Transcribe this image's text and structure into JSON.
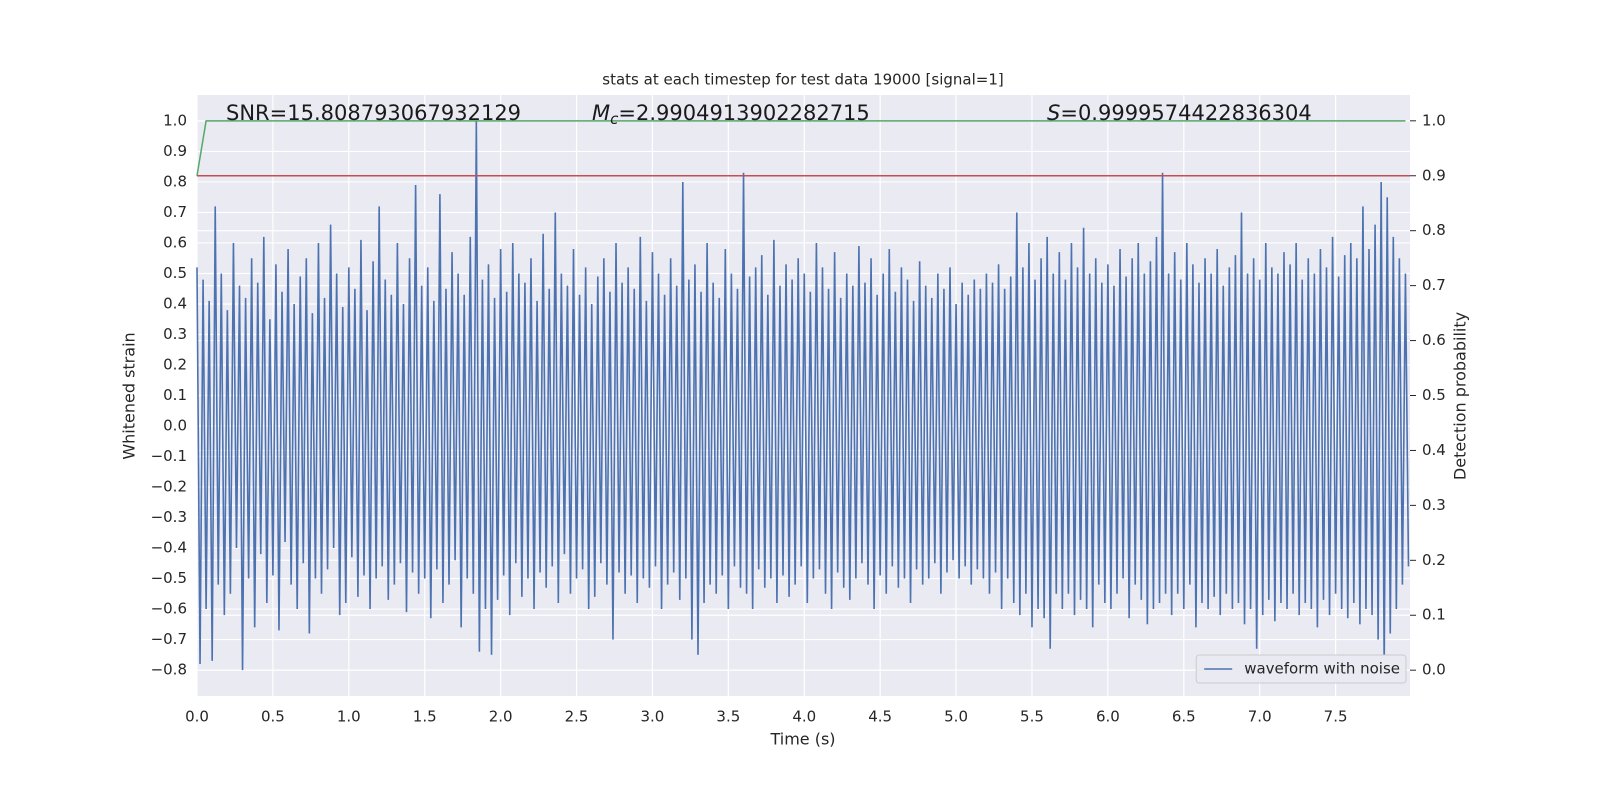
{
  "chart_data": {
    "type": "line",
    "title": "stats at each timestep for test data 19000 [signal=1]",
    "xlabel": "Time (s)",
    "ylabel": "Whitened strain",
    "y2label": "Detection probability",
    "annotations": [
      {
        "text": "SNR=15.808793067932129"
      },
      {
        "symbol": "M",
        "subscript": "c",
        "text": "=2.9904913902282715"
      },
      {
        "symbol": "S",
        "text": "=0.9999574422836304"
      }
    ],
    "xlim": [
      0,
      7.99
    ],
    "ylim": [
      -0.885,
      1.085
    ],
    "y2lim": [
      -0.047,
      1.047
    ],
    "xticks": [
      {
        "value": 0,
        "label": "0.0"
      },
      0.5,
      {
        "value": 1,
        "label": "1.0"
      },
      1.5,
      {
        "value": 2,
        "label": "2.0"
      },
      2.5,
      {
        "value": 3,
        "label": "3.0"
      },
      3.5,
      {
        "value": 4,
        "label": "4.0"
      },
      4.5,
      {
        "value": 5,
        "label": "5.0"
      },
      5.5,
      {
        "value": 6,
        "label": "6.0"
      },
      6.5,
      {
        "value": 7,
        "label": "7.0"
      },
      7.5
    ],
    "yticks": [
      {
        "value": -0.8,
        "label": "−0.8"
      },
      {
        "value": -0.7,
        "label": "−0.7"
      },
      {
        "value": -0.6,
        "label": "−0.6"
      },
      {
        "value": -0.5,
        "label": "−0.5"
      },
      {
        "value": -0.4,
        "label": "−0.4"
      },
      {
        "value": -0.3,
        "label": "−0.3"
      },
      {
        "value": -0.2,
        "label": "−0.2"
      },
      {
        "value": -0.1,
        "label": "−0.1"
      },
      {
        "value": 0,
        "label": "0.0"
      },
      0.1,
      0.2,
      0.3,
      0.4,
      0.5,
      0.6,
      0.7,
      0.8,
      0.9,
      {
        "value": 1,
        "label": "1.0"
      }
    ],
    "y2ticks": [
      {
        "value": 0,
        "label": "0.0"
      },
      0.1,
      0.2,
      0.3,
      0.4,
      0.5,
      0.6,
      0.7,
      0.8,
      0.9,
      {
        "value": 1,
        "label": "1.0"
      }
    ],
    "grid": true,
    "legend": "lower right",
    "series": [
      {
        "name": "waveform with noise",
        "color": "#4c72b0",
        "x": [
          0,
          0.02,
          0.04,
          0.06,
          0.08,
          0.1,
          0.12,
          0.14,
          0.16,
          0.18,
          0.2,
          0.22,
          0.24,
          0.26,
          0.28,
          0.3,
          0.32,
          0.34,
          0.36,
          0.38,
          0.4,
          0.42,
          0.44,
          0.46,
          0.48,
          0.5,
          0.52,
          0.54,
          0.56,
          0.58,
          0.6,
          0.62,
          0.64,
          0.66,
          0.68,
          0.7,
          0.72,
          0.74,
          0.76,
          0.78,
          0.8,
          0.82,
          0.84,
          0.86,
          0.88,
          0.9,
          0.92,
          0.94,
          0.96,
          0.98,
          1,
          1.02,
          1.04,
          1.06,
          1.08,
          1.1,
          1.12,
          1.14,
          1.16,
          1.18,
          1.2,
          1.22,
          1.24,
          1.26,
          1.28,
          1.3,
          1.32,
          1.34,
          1.36,
          1.38,
          1.4,
          1.42,
          1.44,
          1.46,
          1.48,
          1.5,
          1.52,
          1.54,
          1.56,
          1.58,
          1.6,
          1.62,
          1.64,
          1.66,
          1.68,
          1.7,
          1.72,
          1.74,
          1.76,
          1.78,
          1.8,
          1.82,
          1.84,
          1.86,
          1.88,
          1.9,
          1.92,
          1.94,
          1.96,
          1.98,
          2,
          2.02,
          2.04,
          2.06,
          2.08,
          2.1,
          2.12,
          2.14,
          2.16,
          2.18,
          2.2,
          2.22,
          2.24,
          2.26,
          2.28,
          2.3,
          2.32,
          2.34,
          2.36,
          2.38,
          2.4,
          2.42,
          2.44,
          2.46,
          2.48,
          2.5,
          2.52,
          2.54,
          2.56,
          2.58,
          2.6,
          2.62,
          2.64,
          2.66,
          2.68,
          2.7,
          2.72,
          2.74,
          2.76,
          2.78,
          2.8,
          2.82,
          2.84,
          2.86,
          2.88,
          2.9,
          2.92,
          2.94,
          2.96,
          2.98,
          3,
          3.02,
          3.04,
          3.06,
          3.08,
          3.1,
          3.12,
          3.14,
          3.16,
          3.18,
          3.2,
          3.22,
          3.24,
          3.26,
          3.28,
          3.3,
          3.32,
          3.34,
          3.36,
          3.38,
          3.4,
          3.42,
          3.44,
          3.46,
          3.48,
          3.5,
          3.52,
          3.54,
          3.56,
          3.58,
          3.6,
          3.62,
          3.64,
          3.66,
          3.68,
          3.7,
          3.72,
          3.74,
          3.76,
          3.78,
          3.8,
          3.82,
          3.84,
          3.86,
          3.88,
          3.9,
          3.92,
          3.94,
          3.96,
          3.98,
          4,
          4.02,
          4.04,
          4.06,
          4.08,
          4.1,
          4.12,
          4.14,
          4.16,
          4.18,
          4.2,
          4.22,
          4.24,
          4.26,
          4.28,
          4.3,
          4.32,
          4.34,
          4.36,
          4.38,
          4.4,
          4.42,
          4.44,
          4.46,
          4.48,
          4.5,
          4.52,
          4.54,
          4.56,
          4.58,
          4.6,
          4.62,
          4.64,
          4.66,
          4.68,
          4.7,
          4.72,
          4.74,
          4.76,
          4.78,
          4.8,
          4.82,
          4.84,
          4.86,
          4.88,
          4.9,
          4.92,
          4.94,
          4.96,
          4.98,
          5,
          5.02,
          5.04,
          5.06,
          5.08,
          5.1,
          5.12,
          5.14,
          5.16,
          5.18,
          5.2,
          5.22,
          5.24,
          5.26,
          5.28,
          5.3,
          5.32,
          5.34,
          5.36,
          5.38,
          5.4,
          5.42,
          5.44,
          5.46,
          5.48,
          5.5,
          5.52,
          5.54,
          5.56,
          5.58,
          5.6,
          5.62,
          5.64,
          5.66,
          5.68,
          5.7,
          5.72,
          5.74,
          5.76,
          5.78,
          5.8,
          5.82,
          5.84,
          5.86,
          5.88,
          5.9,
          5.92,
          5.94,
          5.96,
          5.98,
          6,
          6.02,
          6.04,
          6.06,
          6.08,
          6.1,
          6.12,
          6.14,
          6.16,
          6.18,
          6.2,
          6.22,
          6.24,
          6.26,
          6.28,
          6.3,
          6.32,
          6.34,
          6.36,
          6.38,
          6.4,
          6.42,
          6.44,
          6.46,
          6.48,
          6.5,
          6.52,
          6.54,
          6.56,
          6.58,
          6.6,
          6.62,
          6.64,
          6.66,
          6.68,
          6.7,
          6.72,
          6.74,
          6.76,
          6.78,
          6.8,
          6.82,
          6.84,
          6.86,
          6.88,
          6.9,
          6.92,
          6.94,
          6.96,
          6.98,
          7,
          7.02,
          7.04,
          7.06,
          7.08,
          7.1,
          7.12,
          7.14,
          7.16,
          7.18,
          7.2,
          7.22,
          7.24,
          7.26,
          7.28,
          7.3,
          7.32,
          7.34,
          7.36,
          7.38,
          7.4,
          7.42,
          7.44,
          7.46,
          7.48,
          7.5,
          7.52,
          7.54,
          7.56,
          7.58,
          7.6,
          7.62,
          7.64,
          7.66,
          7.68,
          7.7,
          7.72,
          7.74,
          7.76,
          7.78,
          7.8,
          7.82,
          7.84,
          7.86,
          7.88,
          7.9,
          7.92,
          7.94,
          7.96,
          7.98
        ],
        "values": [
          0.52,
          -0.78,
          0.48,
          -0.6,
          0.41,
          -0.77,
          0.72,
          -0.52,
          0.5,
          -0.62,
          0.38,
          -0.55,
          0.6,
          -0.4,
          0.46,
          -0.8,
          0.42,
          -0.5,
          0.55,
          -0.66,
          0.47,
          -0.42,
          0.62,
          -0.58,
          0.35,
          -0.49,
          0.53,
          -0.67,
          0.44,
          -0.38,
          0.58,
          -0.52,
          0.4,
          -0.6,
          0.49,
          -0.45,
          0.55,
          -0.68,
          0.37,
          -0.5,
          0.6,
          -0.55,
          0.42,
          -0.47,
          0.66,
          -0.4,
          0.5,
          -0.62,
          0.39,
          -0.58,
          0.52,
          -0.43,
          0.45,
          -0.56,
          0.61,
          -0.49,
          0.38,
          -0.6,
          0.54,
          -0.5,
          0.72,
          -0.46,
          0.48,
          -0.57,
          0.43,
          -0.52,
          0.6,
          -0.45,
          0.4,
          -0.61,
          0.55,
          -0.48,
          0.79,
          -0.55,
          0.46,
          -0.5,
          0.52,
          -0.63,
          0.41,
          -0.47,
          0.76,
          -0.58,
          0.45,
          -0.52,
          0.57,
          -0.44,
          0.5,
          -0.66,
          0.43,
          -0.5,
          0.62,
          -0.55,
          1.0,
          -0.74,
          0.48,
          -0.6,
          0.53,
          -0.75,
          0.42,
          -0.57,
          0.58,
          -0.49,
          0.44,
          -0.62,
          0.6,
          -0.45,
          0.5,
          -0.56,
          0.47,
          -0.5,
          0.55,
          -0.6,
          0.41,
          -0.48,
          0.63,
          -0.53,
          0.45,
          -0.46,
          0.7,
          -0.58,
          0.5,
          -0.42,
          0.46,
          -0.55,
          0.58,
          -0.5,
          0.43,
          -0.47,
          0.52,
          -0.6,
          0.4,
          -0.56,
          0.49,
          -0.45,
          0.55,
          -0.52,
          0.44,
          -0.7,
          0.6,
          -0.48,
          0.47,
          -0.55,
          0.52,
          -0.49,
          0.45,
          -0.58,
          0.62,
          -0.5,
          0.41,
          -0.53,
          0.57,
          -0.46,
          0.5,
          -0.6,
          0.43,
          -0.52,
          0.55,
          -0.48,
          0.46,
          -0.57,
          0.8,
          -0.5,
          0.48,
          -0.7,
          0.53,
          -0.75,
          0.44,
          -0.58,
          0.6,
          -0.52,
          0.47,
          -0.55,
          0.42,
          -0.49,
          0.58,
          -0.6,
          0.5,
          -0.46,
          0.45,
          -0.53,
          0.83,
          -0.55,
          0.49,
          -0.6,
          0.52,
          -0.47,
          0.56,
          -0.53,
          0.43,
          -0.5,
          0.61,
          -0.58,
          0.46,
          -0.49,
          0.53,
          -0.56,
          0.48,
          -0.52,
          0.55,
          -0.46,
          0.5,
          -0.58,
          0.44,
          -0.5,
          0.6,
          -0.47,
          0.52,
          -0.55,
          0.45,
          -0.6,
          0.57,
          -0.48,
          0.42,
          -0.53,
          0.5,
          -0.57,
          0.46,
          -0.5,
          0.59,
          -0.45,
          0.47,
          -0.52,
          0.55,
          -0.6,
          0.43,
          -0.49,
          0.5,
          -0.55,
          0.58,
          -0.46,
          0.44,
          -0.53,
          0.52,
          -0.5,
          0.48,
          -0.58,
          0.41,
          -0.47,
          0.54,
          -0.52,
          0.46,
          -0.5,
          0.42,
          -0.45,
          0.5,
          -0.55,
          0.45,
          -0.48,
          0.52,
          -0.44,
          0.4,
          -0.5,
          0.47,
          -0.46,
          0.43,
          -0.52,
          0.48,
          -0.47,
          0.45,
          -0.5,
          0.5,
          -0.55,
          0.47,
          -0.48,
          0.53,
          -0.6,
          0.45,
          -0.5,
          0.49,
          -0.58,
          0.7,
          -0.62,
          0.52,
          -0.55,
          0.6,
          -0.66,
          0.48,
          -0.6,
          0.55,
          -0.63,
          0.62,
          -0.73,
          0.5,
          -0.55,
          0.57,
          -0.6,
          0.48,
          -0.55,
          0.6,
          -0.62,
          0.52,
          -0.57,
          0.65,
          -0.6,
          0.5,
          -0.66,
          0.55,
          -0.52,
          0.47,
          -0.58,
          0.53,
          -0.6,
          0.46,
          -0.55,
          0.58,
          -0.5,
          0.49,
          -0.63,
          0.55,
          -0.52,
          0.6,
          -0.57,
          0.5,
          -0.65,
          0.54,
          -0.6,
          0.62,
          -0.58,
          0.83,
          -0.55,
          0.5,
          -0.62,
          0.57,
          -0.55,
          0.48,
          -0.6,
          0.6,
          -0.52,
          0.53,
          -0.66,
          0.47,
          -0.58,
          0.55,
          -0.6,
          0.5,
          -0.56,
          0.58,
          -0.62,
          0.46,
          -0.55,
          0.52,
          -0.6,
          0.56,
          -0.58,
          0.7,
          -0.65,
          0.5,
          -0.6,
          0.55,
          -0.73,
          0.48,
          -0.62,
          0.6,
          -0.57,
          0.52,
          -0.64,
          0.5,
          -0.58,
          0.57,
          -0.6,
          0.53,
          -0.55,
          0.6,
          -0.62,
          0.48,
          -0.58,
          0.55,
          -0.6,
          0.5,
          -0.66,
          0.58,
          -0.57,
          0.52,
          -0.62,
          0.62,
          -0.55,
          0.49,
          -0.6,
          0.56,
          -0.63,
          0.6,
          -0.58,
          0.55,
          -0.65,
          0.72,
          -0.6,
          0.58,
          -0.62,
          0.66,
          -0.7,
          0.8,
          -0.79,
          0.75,
          -0.68,
          0.62,
          -0.6,
          0.55,
          -0.52,
          0.5,
          -0.46
        ]
      },
      {
        "color": "#55a868",
        "axis": "y2",
        "x": [
          0,
          0.06,
          7.96
        ],
        "values": [
          0.9,
          1.0,
          1.0
        ]
      },
      {
        "color": "#c44e52",
        "axis": "y2",
        "x": [
          0,
          7.99
        ],
        "values": [
          0.9,
          0.9
        ]
      }
    ]
  }
}
